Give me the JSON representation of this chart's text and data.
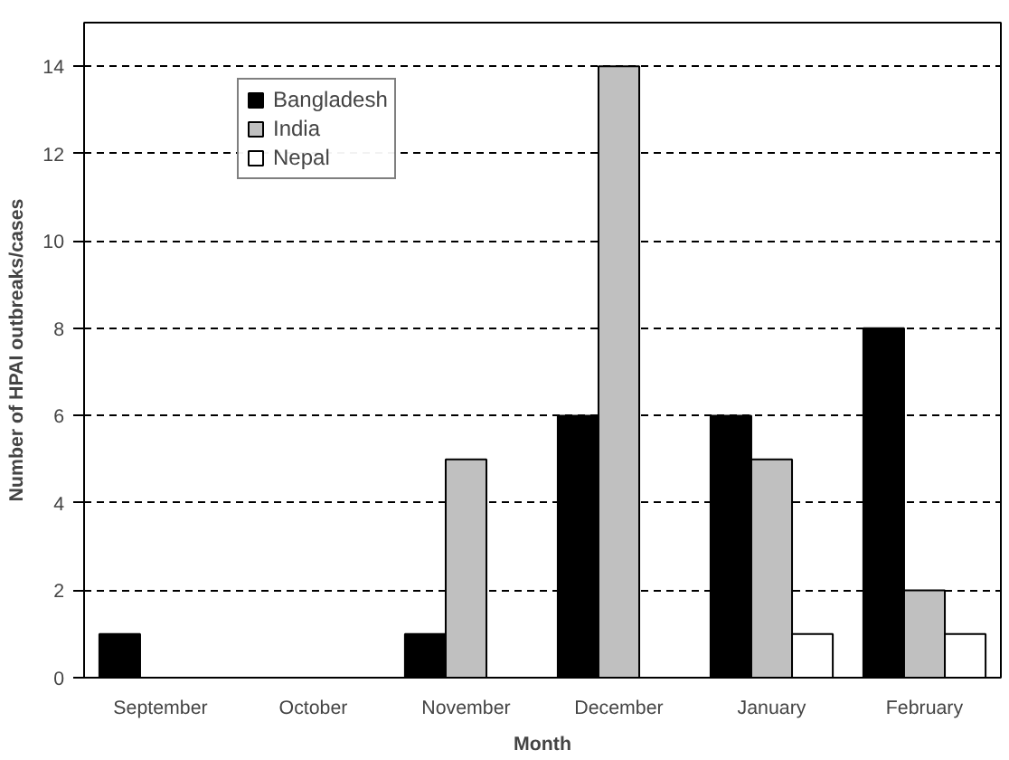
{
  "chart_data": {
    "type": "bar",
    "xlabel": "Month",
    "ylabel": "Number of HPAI outbreaks/cases",
    "categories": [
      "September",
      "October",
      "November",
      "December",
      "January",
      "February"
    ],
    "series": [
      {
        "name": "Bangladesh",
        "color": "#000000",
        "values": [
          1,
          0,
          1,
          6,
          6,
          8
        ]
      },
      {
        "name": "India",
        "color": "#c0c0c0",
        "values": [
          0,
          0,
          5,
          14,
          5,
          2
        ]
      },
      {
        "name": "Nepal",
        "color": "#ffffff",
        "values": [
          0,
          0,
          0,
          0,
          1,
          1
        ]
      }
    ],
    "ylim": [
      0,
      15
    ],
    "yticks": [
      0,
      2,
      4,
      6,
      8,
      10,
      12,
      14
    ],
    "grid": "y",
    "legend": "top left"
  }
}
